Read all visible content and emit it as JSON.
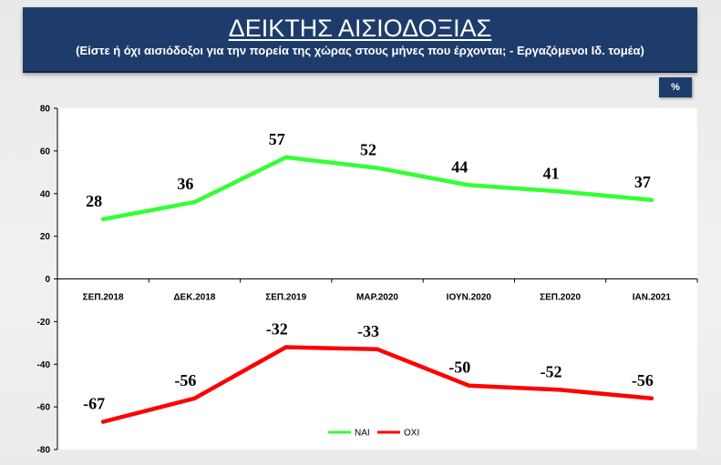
{
  "header": {
    "title": "ΔΕΙΚΤΗΣ ΑΙΣΙΟΔΟΞΙΑΣ",
    "subtitle": "(Είστε ή όχι αισιόδοξοι για την πορεία της χώρας στους  μήνες που έρχονται; - Εργαζόμενοι Ιδ. τομέα)"
  },
  "unit_badge": "%",
  "colors": {
    "header_bg": "#1d3c6b",
    "nai": "#33ff33",
    "oxi": "#ff0000"
  },
  "chart_data": {
    "type": "line",
    "title": "ΔΕΙΚΤΗΣ ΑΙΣΙΟΔΟΞΙΑΣ",
    "categories": [
      "ΣΕΠ.2018",
      "ΔΕΚ.2018",
      "ΣΕΠ.2019",
      "ΜΑΡ.2020",
      "ΙΟΥΝ.2020",
      "ΣΕΠ.2020",
      "ΙΑΝ.2021"
    ],
    "series": [
      {
        "name": "ΝΑΙ",
        "color": "#33ff33",
        "values": [
          28,
          36,
          57,
          52,
          44,
          41,
          37
        ],
        "labels": [
          "28",
          "36",
          "57",
          "52",
          "44",
          "41",
          "37"
        ]
      },
      {
        "name": "ΟΧΙ",
        "color": "#ff0000",
        "values": [
          -67,
          -56,
          -32,
          -33,
          -50,
          -52,
          -56
        ],
        "labels": [
          "-67",
          "-56",
          "-32",
          "-33",
          "-50",
          "-52",
          "-56"
        ]
      }
    ],
    "ylim": [
      -80,
      80
    ],
    "yticks": [
      80,
      60,
      40,
      20,
      0,
      -20,
      -40,
      -60,
      -80
    ],
    "ytick_labels": [
      "80",
      "60",
      "40",
      "20",
      "0",
      "-20",
      "-40",
      "-60",
      "-80"
    ],
    "grid": false,
    "legend": "bottom-right"
  }
}
